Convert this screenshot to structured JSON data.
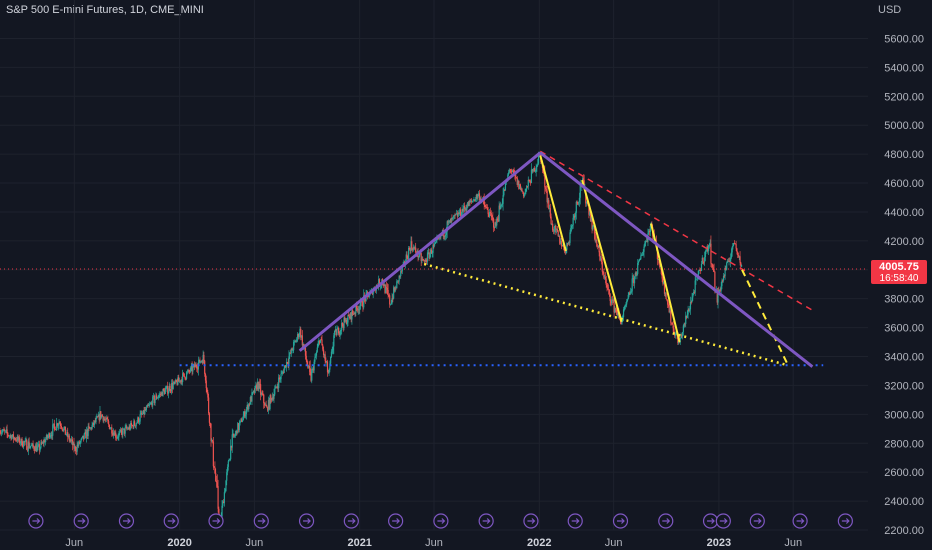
{
  "header": {
    "title": "S&P 500 E-mini Futures, 1D, CME_MINI"
  },
  "price_scale": {
    "unit": "USD"
  },
  "last_price": {
    "value": "4005.75",
    "countdown": "16:58:40"
  },
  "colors": {
    "background": "#131722",
    "up_candle": "#26a69a",
    "down_candle": "#ef5350",
    "main_trendline": "#7e57c2",
    "yellow_lines": "#ffeb3b",
    "red_dashed": "#f23645",
    "blue_dotted": "#2962ff",
    "last_price_line": "#f23645",
    "event_icon": "#7e57c2"
  },
  "chart_data": {
    "type": "candlestick",
    "title": "S&P 500 E-mini Futures, 1D, CME_MINI",
    "ylabel": "USD",
    "y_ticks": [
      "5600.00",
      "5400.00",
      "5200.00",
      "5000.00",
      "4800.00",
      "4600.00",
      "4400.00",
      "4200.00",
      "4000.00",
      "3800.00",
      "3600.00",
      "3400.00",
      "3200.00",
      "3000.00",
      "2800.00",
      "2600.00",
      "2400.00",
      "2200.00"
    ],
    "x_ticks": [
      {
        "label": "Jun",
        "date": "2019-06-01",
        "bold": false
      },
      {
        "label": "2020",
        "date": "2020-01-01",
        "bold": true
      },
      {
        "label": "Jun",
        "date": "2020-06-01",
        "bold": false
      },
      {
        "label": "2021",
        "date": "2021-01-01",
        "bold": true
      },
      {
        "label": "Jun",
        "date": "2021-06-01",
        "bold": false
      },
      {
        "label": "2022",
        "date": "2022-01-01",
        "bold": true
      },
      {
        "label": "Jun",
        "date": "2022-06-01",
        "bold": false
      },
      {
        "label": "2023",
        "date": "2023-01-01",
        "bold": true
      },
      {
        "label": "Jun",
        "date": "2023-06-01",
        "bold": false
      }
    ],
    "xlim": [
      "2019-01-01",
      "2023-10-31"
    ],
    "ylim": [
      2200,
      5700
    ],
    "price_path": [
      [
        "2019-01-01",
        2890
      ],
      [
        "2019-02-20",
        2800
      ],
      [
        "2019-03-20",
        2760
      ],
      [
        "2019-05-01",
        2950
      ],
      [
        "2019-06-03",
        2760
      ],
      [
        "2019-07-25",
        3000
      ],
      [
        "2019-08-26",
        2850
      ],
      [
        "2019-10-01",
        2930
      ],
      [
        "2019-11-15",
        3120
      ],
      [
        "2019-12-31",
        3230
      ],
      [
        "2020-02-19",
        3390
      ],
      [
        "2020-03-01",
        3000
      ],
      [
        "2020-03-23",
        2240
      ],
      [
        "2020-04-15",
        2800
      ],
      [
        "2020-06-08",
        3210
      ],
      [
        "2020-06-26",
        3030
      ],
      [
        "2020-09-02",
        3580
      ],
      [
        "2020-09-23",
        3240
      ],
      [
        "2020-10-12",
        3530
      ],
      [
        "2020-10-30",
        3270
      ],
      [
        "2020-11-10",
        3550
      ],
      [
        "2020-12-31",
        3750
      ],
      [
        "2021-02-15",
        3930
      ],
      [
        "2021-03-04",
        3770
      ],
      [
        "2021-04-15",
        4170
      ],
      [
        "2021-05-12",
        4050
      ],
      [
        "2021-07-01",
        4320
      ],
      [
        "2021-08-31",
        4520
      ],
      [
        "2021-10-04",
        4300
      ],
      [
        "2021-11-02",
        4700
      ],
      [
        "2021-12-01",
        4520
      ],
      [
        "2022-01-03",
        4800
      ],
      [
        "2022-01-27",
        4300
      ],
      [
        "2022-02-24",
        4130
      ],
      [
        "2022-03-29",
        4620
      ],
      [
        "2022-05-20",
        3850
      ],
      [
        "2022-06-16",
        3640
      ],
      [
        "2022-08-16",
        4320
      ],
      [
        "2022-09-30",
        3590
      ],
      [
        "2022-10-13",
        3500
      ],
      [
        "2022-11-30",
        4080
      ],
      [
        "2022-12-13",
        4180
      ],
      [
        "2022-12-28",
        3800
      ],
      [
        "2023-02-02",
        4200
      ],
      [
        "2023-02-17",
        4005.75
      ]
    ],
    "annotations": {
      "uptrend_line": {
        "color": "purple",
        "style": "solid",
        "from": [
          "2020-09-01",
          3440
        ],
        "to": [
          "2022-01-03",
          4810
        ]
      },
      "downtrend_line": {
        "color": "purple",
        "style": "solid",
        "from": [
          "2022-01-03",
          4810
        ],
        "to": [
          "2023-07-10",
          3330
        ]
      },
      "falling_wedge_support": {
        "color": "yellow",
        "style": "dotted",
        "from": [
          "2021-05-12",
          4040
        ],
        "to": [
          "2023-05-20",
          3340
        ]
      },
      "projection_leg": {
        "color": "yellow",
        "style": "dashed",
        "from": [
          "2023-02-17",
          4000
        ],
        "to": [
          "2023-05-20",
          3350
        ]
      },
      "yellow_swing_legs": [
        {
          "from": [
            "2022-01-03",
            4790
          ],
          "to": [
            "2022-02-24",
            4130
          ]
        },
        {
          "from": [
            "2022-03-29",
            4620
          ],
          "to": [
            "2022-06-17",
            3640
          ]
        },
        {
          "from": [
            "2022-08-16",
            4320
          ],
          "to": [
            "2022-10-13",
            3500
          ]
        }
      ],
      "upper_resistance": {
        "color": "red",
        "style": "dashed",
        "from": [
          "2022-01-03",
          4820
        ],
        "to": [
          "2023-07-10",
          3720
        ]
      },
      "horizontal_support": {
        "color": "blue",
        "style": "dotted",
        "level": 3340,
        "from": "2020-01-01",
        "to": "2023-08-01"
      },
      "last_price_line": {
        "color": "red",
        "style": "dotted",
        "level": 4005.75
      }
    },
    "event_markers": [
      "2019-03-15",
      "2019-06-15",
      "2019-09-15",
      "2019-12-15",
      "2020-03-15",
      "2020-06-15",
      "2020-09-15",
      "2020-12-15",
      "2021-03-15",
      "2021-06-15",
      "2021-09-15",
      "2021-12-15",
      "2022-03-15",
      "2022-06-15",
      "2022-09-15",
      "2022-12-15",
      "2023-01-10",
      "2023-03-20",
      "2023-06-15",
      "2023-09-15"
    ],
    "grid": true,
    "legend": "none"
  }
}
